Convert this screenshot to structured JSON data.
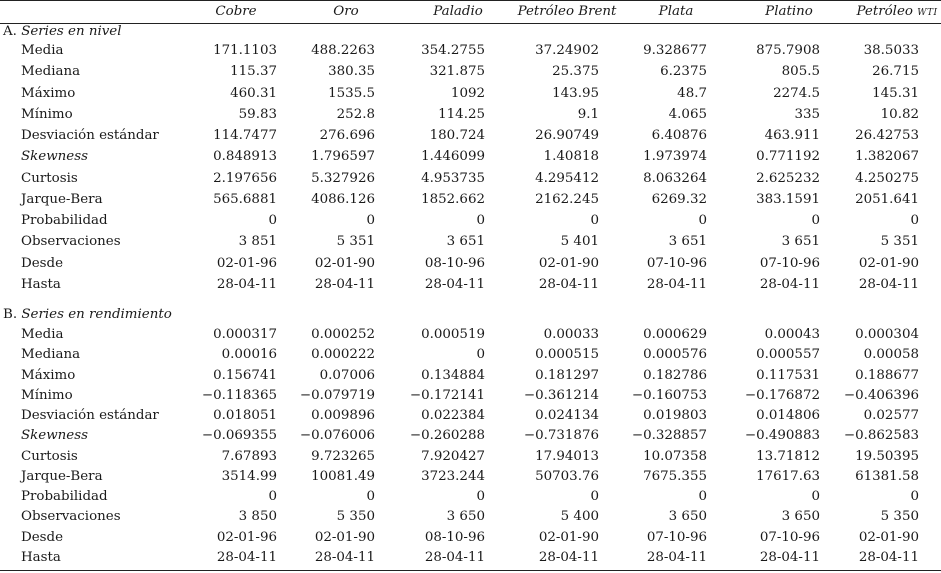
{
  "columns": [
    "Cobre",
    "Oro",
    "Paladio",
    "Petróleo Brent",
    "Plata",
    "Platino"
  ],
  "last_column": {
    "text": "Petróleo ",
    "small_caps": "wti"
  },
  "sections": [
    {
      "prefix": "A. ",
      "title": "Series en nivel",
      "rows": [
        {
          "label": "Media",
          "italic": false,
          "values": [
            "171.1103",
            "488.2263",
            "354.2755",
            "37.24902",
            "9.328677",
            "875.7908",
            "38.5033"
          ]
        },
        {
          "label": "Mediana",
          "italic": false,
          "values": [
            "115.37",
            "380.35",
            "321.875",
            "25.375",
            "6.2375",
            "805.5",
            "26.715"
          ]
        },
        {
          "label": "Máximo",
          "italic": false,
          "values": [
            "460.31",
            "1535.5",
            "1092",
            "143.95",
            "48.7",
            "2274.5",
            "145.31"
          ]
        },
        {
          "label": "Mínimo",
          "italic": false,
          "values": [
            "59.83",
            "252.8",
            "114.25",
            "9.1",
            "4.065",
            "335",
            "10.82"
          ]
        },
        {
          "label": "Desviación estándar",
          "italic": false,
          "values": [
            "114.7477",
            "276.696",
            "180.724",
            "26.90749",
            "6.40876",
            "463.911",
            "26.42753"
          ]
        },
        {
          "label": "Skewness",
          "italic": true,
          "values": [
            "0.848913",
            "1.796597",
            "1.446099",
            "1.40818",
            "1.973974",
            "0.771192",
            "1.382067"
          ]
        },
        {
          "label": "Curtosis",
          "italic": false,
          "values": [
            "2.197656",
            "5.327926",
            "4.953735",
            "4.295412",
            "8.063264",
            "2.625232",
            "4.250275"
          ]
        },
        {
          "label": "Jarque-Bera",
          "italic": false,
          "values": [
            "565.6881",
            "4086.126",
            "1852.662",
            "2162.245",
            "6269.32",
            "383.1591",
            "2051.641"
          ]
        },
        {
          "label": "Probabilidad",
          "italic": false,
          "values": [
            "0",
            "0",
            "0",
            "0",
            "0",
            "0",
            "0"
          ]
        },
        {
          "label": "Observaciones",
          "italic": false,
          "values": [
            "3 851",
            "5 351",
            "3 651",
            "5 401",
            "3 651",
            "3 651",
            "5 351"
          ]
        },
        {
          "label": "Desde",
          "italic": false,
          "values": [
            "02-01-96",
            "02-01-90",
            "08-10-96",
            "02-01-90",
            "07-10-96",
            "07-10-96",
            "02-01-90"
          ]
        },
        {
          "label": "Hasta",
          "italic": false,
          "values": [
            "28-04-11",
            "28-04-11",
            "28-04-11",
            "28-04-11",
            "28-04-11",
            "28-04-11",
            "28-04-11"
          ]
        }
      ]
    },
    {
      "prefix": "B. ",
      "title": "Series en rendimiento",
      "rows": [
        {
          "label": "Media",
          "italic": false,
          "values": [
            "0.000317",
            "0.000252",
            "0.000519",
            "0.00033",
            "0.000629",
            "0.00043",
            "0.000304"
          ]
        },
        {
          "label": "Mediana",
          "italic": false,
          "values": [
            "0.00016",
            "0.000222",
            "0",
            "0.000515",
            "0.000576",
            "0.000557",
            "0.00058"
          ]
        },
        {
          "label": "Máximo",
          "italic": false,
          "values": [
            "0.156741",
            "0.07006",
            "0.134884",
            "0.181297",
            "0.182786",
            "0.117531",
            "0.188677"
          ]
        },
        {
          "label": "Mínimo",
          "italic": false,
          "values": [
            "−0.118365",
            "−0.079719",
            "−0.172141",
            "−0.361214",
            "−0.160753",
            "−0.176872",
            "−0.406396"
          ]
        },
        {
          "label": "Desviación estándar",
          "italic": false,
          "values": [
            "0.018051",
            "0.009896",
            "0.022384",
            "0.024134",
            "0.019803",
            "0.014806",
            "0.02577"
          ]
        },
        {
          "label": "Skewness",
          "italic": true,
          "values": [
            "−0.069355",
            "−0.076006",
            "−0.260288",
            "−0.731876",
            "−0.328857",
            "−0.490883",
            "−0.862583"
          ]
        },
        {
          "label": "Curtosis",
          "italic": false,
          "values": [
            "7.67893",
            "9.723265",
            "7.920427",
            "17.94013",
            "10.07358",
            "13.71812",
            "19.50395"
          ]
        },
        {
          "label": "Jarque-Bera",
          "italic": false,
          "values": [
            "3514.99",
            "10081.49",
            "3723.244",
            "50703.76",
            "7675.355",
            "17617.63",
            "61381.58"
          ]
        },
        {
          "label": "Probabilidad",
          "italic": false,
          "values": [
            "0",
            "0",
            "0",
            "0",
            "0",
            "0",
            "0"
          ]
        },
        {
          "label": "Observaciones",
          "italic": false,
          "values": [
            "3 850",
            "5 350",
            "3 650",
            "5 400",
            "3 650",
            "3 650",
            "5 350"
          ]
        },
        {
          "label": "Desde",
          "italic": false,
          "values": [
            "02-01-96",
            "02-01-90",
            "08-10-96",
            "02-01-90",
            "07-10-96",
            "07-10-96",
            "02-01-90"
          ]
        },
        {
          "label": "Hasta",
          "italic": false,
          "values": [
            "28-04-11",
            "28-04-11",
            "28-04-11",
            "28-04-11",
            "28-04-11",
            "28-04-11",
            "28-04-11"
          ]
        }
      ]
    }
  ]
}
